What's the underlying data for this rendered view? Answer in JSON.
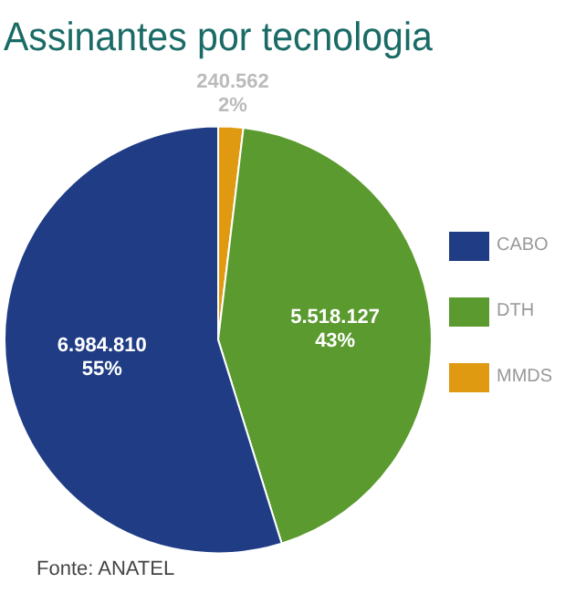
{
  "chart_data": {
    "type": "pie",
    "title": "Assinantes por tecnologia",
    "categories": [
      "CABO",
      "DTH",
      "MMDS"
    ],
    "values": [
      6984810,
      5518127,
      240562
    ],
    "colors": [
      "#1f3c85",
      "#5b9a2f",
      "#e09a12"
    ],
    "value_labels": [
      "6.984.810\n55%",
      "5.518.127\n43%",
      "240.562\n2%"
    ],
    "legend": "right",
    "annotations": [
      "Fonte: ANATEL"
    ]
  }
}
